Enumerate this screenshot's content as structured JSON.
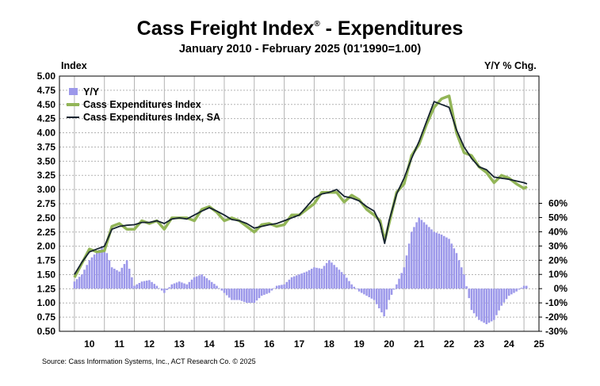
{
  "header": {
    "title": "Cass Freight Index",
    "title_mark": "®",
    "title_suffix": " - Expenditures",
    "subtitle": "January 2010 - February 2025 (01'1990=1.00)",
    "left_axis_title": "Index",
    "right_axis_title": "Y/Y % Chg.",
    "source": "Source: Cass Information Systems, Inc., ACT Research Co. © 2025"
  },
  "colors": {
    "yy_bars": "#9c98ea",
    "index_line": "#92b557",
    "sa_line": "#162330",
    "grid": "#b4b4b4"
  },
  "chart_data": {
    "type": "line",
    "x_axis": {
      "type": "year",
      "range": [
        2009.5,
        2025.5
      ],
      "tick_labels": [
        "10",
        "11",
        "12",
        "13",
        "14",
        "15",
        "16",
        "17",
        "18",
        "19",
        "20",
        "21",
        "22",
        "23",
        "24",
        "25"
      ]
    },
    "y_left": {
      "label": "Index",
      "range": [
        0.5,
        5.0
      ],
      "step": 0.25,
      "tick_labels": [
        "0.50",
        "0.75",
        "1.00",
        "1.25",
        "1.50",
        "1.75",
        "2.00",
        "2.25",
        "2.50",
        "2.75",
        "3.00",
        "3.25",
        "3.50",
        "3.75",
        "4.00",
        "4.25",
        "4.50",
        "4.75",
        "5.00"
      ]
    },
    "y_right": {
      "label": "Y/Y % Chg.",
      "range": [
        -30,
        60
      ],
      "tick_labels": [
        "-30%",
        "-20%",
        "-10%",
        "0%",
        "10%",
        "20%",
        "30%",
        "40%",
        "50%",
        "60%"
      ]
    },
    "grid": true,
    "legend_position": "top-left",
    "legend": [
      "Y/Y",
      "Cass Expenditures Index",
      "Cass Expenditures Index, SA"
    ],
    "series": [
      {
        "name": "Cass Expenditures Index, SA",
        "axis": "left",
        "points": [
          [
            2010.0,
            1.5
          ],
          [
            2010.25,
            1.72
          ],
          [
            2010.5,
            1.9
          ],
          [
            2010.75,
            1.95
          ],
          [
            2011.0,
            2.0
          ],
          [
            2011.25,
            2.3
          ],
          [
            2011.5,
            2.35
          ],
          [
            2011.75,
            2.37
          ],
          [
            2012.0,
            2.38
          ],
          [
            2012.25,
            2.42
          ],
          [
            2012.5,
            2.42
          ],
          [
            2012.75,
            2.45
          ],
          [
            2013.0,
            2.4
          ],
          [
            2013.25,
            2.48
          ],
          [
            2013.5,
            2.5
          ],
          [
            2013.75,
            2.48
          ],
          [
            2014.0,
            2.55
          ],
          [
            2014.25,
            2.62
          ],
          [
            2014.5,
            2.68
          ],
          [
            2014.75,
            2.62
          ],
          [
            2015.0,
            2.55
          ],
          [
            2015.25,
            2.47
          ],
          [
            2015.5,
            2.45
          ],
          [
            2015.75,
            2.4
          ],
          [
            2016.0,
            2.32
          ],
          [
            2016.25,
            2.35
          ],
          [
            2016.5,
            2.38
          ],
          [
            2016.75,
            2.4
          ],
          [
            2017.0,
            2.45
          ],
          [
            2017.25,
            2.5
          ],
          [
            2017.5,
            2.55
          ],
          [
            2017.75,
            2.7
          ],
          [
            2018.0,
            2.85
          ],
          [
            2018.25,
            2.92
          ],
          [
            2018.5,
            2.95
          ],
          [
            2018.75,
            3.0
          ],
          [
            2019.0,
            2.88
          ],
          [
            2019.25,
            2.85
          ],
          [
            2019.5,
            2.8
          ],
          [
            2019.75,
            2.7
          ],
          [
            2020.0,
            2.62
          ],
          [
            2020.2,
            2.4
          ],
          [
            2020.35,
            2.05
          ],
          [
            2020.5,
            2.45
          ],
          [
            2020.75,
            2.92
          ],
          [
            2021.0,
            3.2
          ],
          [
            2021.25,
            3.55
          ],
          [
            2021.5,
            3.85
          ],
          [
            2021.75,
            4.2
          ],
          [
            2022.0,
            4.55
          ],
          [
            2022.25,
            4.5
          ],
          [
            2022.5,
            4.45
          ],
          [
            2022.75,
            4.05
          ],
          [
            2023.0,
            3.75
          ],
          [
            2023.25,
            3.55
          ],
          [
            2023.5,
            3.4
          ],
          [
            2023.75,
            3.35
          ],
          [
            2024.0,
            3.22
          ],
          [
            2024.25,
            3.2
          ],
          [
            2024.5,
            3.18
          ],
          [
            2024.75,
            3.15
          ],
          [
            2025.0,
            3.12
          ],
          [
            2025.1,
            3.1
          ]
        ]
      },
      {
        "name": "Cass Expenditures Index",
        "axis": "left",
        "points": [
          [
            2010.0,
            1.45
          ],
          [
            2010.25,
            1.7
          ],
          [
            2010.5,
            1.95
          ],
          [
            2010.75,
            1.9
          ],
          [
            2011.0,
            1.92
          ],
          [
            2011.25,
            2.35
          ],
          [
            2011.5,
            2.4
          ],
          [
            2011.75,
            2.3
          ],
          [
            2012.0,
            2.3
          ],
          [
            2012.25,
            2.45
          ],
          [
            2012.5,
            2.4
          ],
          [
            2012.75,
            2.45
          ],
          [
            2013.0,
            2.3
          ],
          [
            2013.25,
            2.5
          ],
          [
            2013.5,
            2.5
          ],
          [
            2013.75,
            2.5
          ],
          [
            2014.0,
            2.45
          ],
          [
            2014.25,
            2.65
          ],
          [
            2014.5,
            2.7
          ],
          [
            2014.75,
            2.6
          ],
          [
            2015.0,
            2.45
          ],
          [
            2015.25,
            2.5
          ],
          [
            2015.5,
            2.45
          ],
          [
            2015.75,
            2.35
          ],
          [
            2016.0,
            2.25
          ],
          [
            2016.25,
            2.38
          ],
          [
            2016.5,
            2.4
          ],
          [
            2016.75,
            2.35
          ],
          [
            2017.0,
            2.38
          ],
          [
            2017.25,
            2.55
          ],
          [
            2017.5,
            2.55
          ],
          [
            2017.75,
            2.65
          ],
          [
            2018.0,
            2.75
          ],
          [
            2018.25,
            2.95
          ],
          [
            2018.5,
            2.95
          ],
          [
            2018.75,
            2.95
          ],
          [
            2019.0,
            2.78
          ],
          [
            2019.25,
            2.9
          ],
          [
            2019.5,
            2.82
          ],
          [
            2019.75,
            2.65
          ],
          [
            2020.0,
            2.55
          ],
          [
            2020.2,
            2.45
          ],
          [
            2020.35,
            2.1
          ],
          [
            2020.5,
            2.4
          ],
          [
            2020.75,
            2.95
          ],
          [
            2021.0,
            3.1
          ],
          [
            2021.25,
            3.6
          ],
          [
            2021.5,
            3.8
          ],
          [
            2021.75,
            4.15
          ],
          [
            2022.0,
            4.45
          ],
          [
            2022.25,
            4.6
          ],
          [
            2022.5,
            4.65
          ],
          [
            2022.75,
            4.0
          ],
          [
            2023.0,
            3.65
          ],
          [
            2023.25,
            3.6
          ],
          [
            2023.5,
            3.4
          ],
          [
            2023.75,
            3.3
          ],
          [
            2024.0,
            3.12
          ],
          [
            2024.25,
            3.25
          ],
          [
            2024.5,
            3.2
          ],
          [
            2024.75,
            3.1
          ],
          [
            2025.0,
            3.02
          ],
          [
            2025.1,
            3.05
          ]
        ]
      },
      {
        "name": "Y/Y",
        "axis": "right",
        "type": "bar",
        "points": [
          [
            2010.0,
            5
          ],
          [
            2010.25,
            10
          ],
          [
            2010.5,
            20
          ],
          [
            2010.75,
            26
          ],
          [
            2011.0,
            30
          ],
          [
            2011.25,
            15
          ],
          [
            2011.5,
            12
          ],
          [
            2011.75,
            20
          ],
          [
            2012.0,
            2
          ],
          [
            2012.25,
            5
          ],
          [
            2012.5,
            6
          ],
          [
            2012.75,
            2
          ],
          [
            2013.0,
            -3
          ],
          [
            2013.25,
            3
          ],
          [
            2013.5,
            5
          ],
          [
            2013.75,
            3
          ],
          [
            2014.0,
            8
          ],
          [
            2014.25,
            10
          ],
          [
            2014.5,
            6
          ],
          [
            2014.75,
            2
          ],
          [
            2015.0,
            -3
          ],
          [
            2015.25,
            -8
          ],
          [
            2015.5,
            -8
          ],
          [
            2015.75,
            -10
          ],
          [
            2016.0,
            -10
          ],
          [
            2016.25,
            -5
          ],
          [
            2016.5,
            -3
          ],
          [
            2016.75,
            2
          ],
          [
            2017.0,
            3
          ],
          [
            2017.25,
            8
          ],
          [
            2017.5,
            10
          ],
          [
            2017.75,
            12
          ],
          [
            2018.0,
            15
          ],
          [
            2018.25,
            14
          ],
          [
            2018.5,
            20
          ],
          [
            2018.75,
            15
          ],
          [
            2019.0,
            10
          ],
          [
            2019.25,
            3
          ],
          [
            2019.5,
            -2
          ],
          [
            2019.75,
            -5
          ],
          [
            2020.0,
            -8
          ],
          [
            2020.2,
            -15
          ],
          [
            2020.35,
            -20
          ],
          [
            2020.5,
            -8
          ],
          [
            2020.75,
            3
          ],
          [
            2021.0,
            15
          ],
          [
            2021.25,
            40
          ],
          [
            2021.5,
            50
          ],
          [
            2021.75,
            45
          ],
          [
            2022.0,
            40
          ],
          [
            2022.25,
            38
          ],
          [
            2022.5,
            35
          ],
          [
            2022.75,
            25
          ],
          [
            2023.0,
            10
          ],
          [
            2023.25,
            -15
          ],
          [
            2023.5,
            -22
          ],
          [
            2023.75,
            -25
          ],
          [
            2024.0,
            -22
          ],
          [
            2024.25,
            -12
          ],
          [
            2024.5,
            -5
          ],
          [
            2024.75,
            -2
          ],
          [
            2025.0,
            2
          ],
          [
            2025.1,
            2
          ]
        ]
      }
    ]
  }
}
